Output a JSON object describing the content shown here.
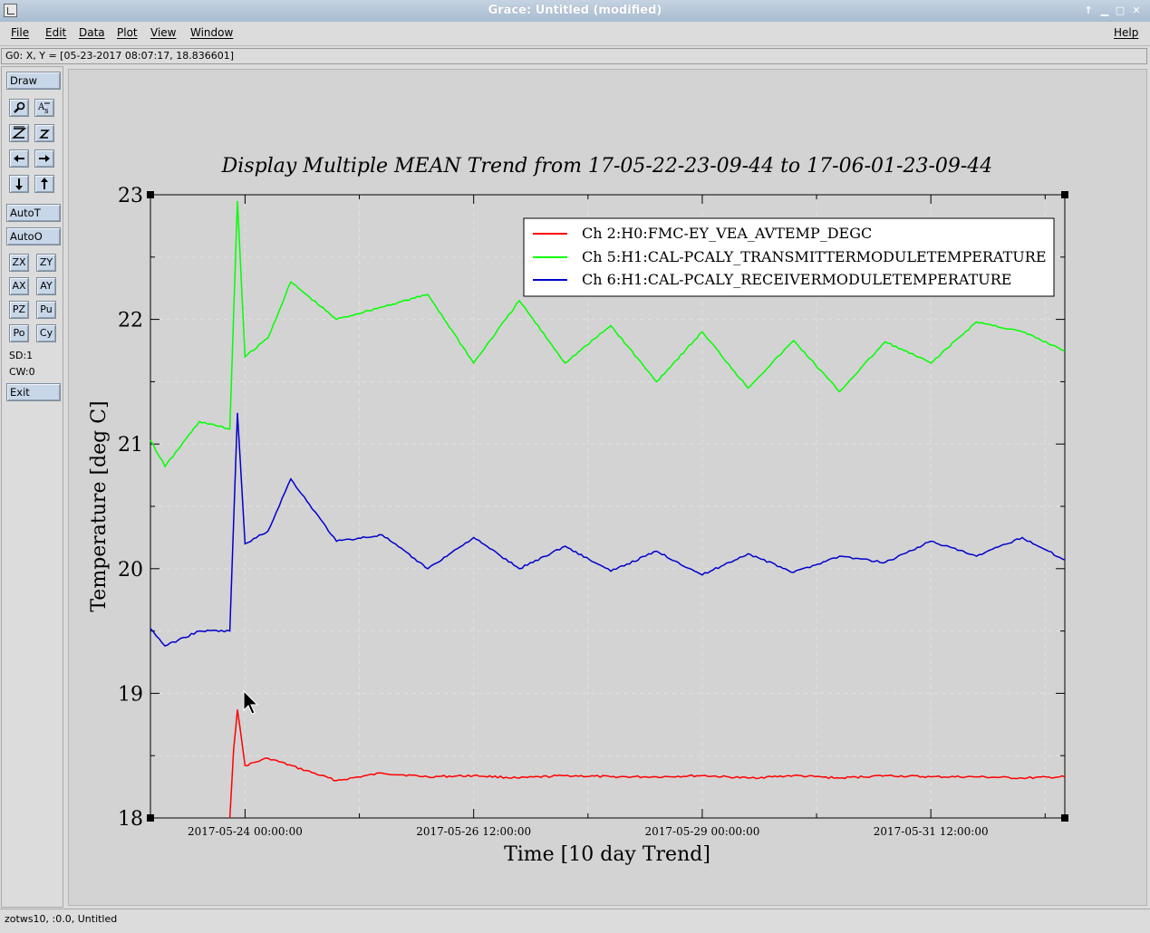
{
  "window": {
    "title": "Grace: Untitled (modified)"
  },
  "menubar": {
    "items": [
      "File",
      "Edit",
      "Data",
      "Plot",
      "View",
      "Window"
    ],
    "help": "Help"
  },
  "locator": {
    "text": "G0: X, Y = [05-23-2017 08:07:17, 18.836601]"
  },
  "toolbar": {
    "draw": "Draw",
    "zoom_icons": [
      "zoom-icon",
      "text-icon",
      "zoom-z-icon",
      "unzoom-z-icon",
      "arrow-left-icon",
      "arrow-right-icon",
      "arrow-down-icon",
      "arrow-up-icon"
    ],
    "autot": "AutoT",
    "autoo": "AutoO",
    "grid_buttons": [
      [
        "ZX",
        "ZY"
      ],
      [
        "AX",
        "AY"
      ],
      [
        "PZ",
        "Pu"
      ],
      [
        "Po",
        "Cy"
      ]
    ],
    "sd": "SD:1",
    "cw": "CW:0",
    "exit": "Exit"
  },
  "status": {
    "text": "zotws10, :0.0, Untitled"
  },
  "chart_data": {
    "type": "line",
    "title": "Display Multiple MEAN Trend from 17-05-22-23-09-44 to 17-06-01-23-09-44",
    "xlabel": "Time [10 day Trend]",
    "ylabel": "Temperature [deg C]",
    "xlim": [
      "2017-05-22 23:09:44",
      "2017-06-01 23:09:44"
    ],
    "ylim": [
      18,
      23
    ],
    "yticks": [
      "18",
      "19",
      "20",
      "21",
      "22",
      "23"
    ],
    "xticks": [
      "2017-05-24 00:00:00",
      "2017-05-26 12:00:00",
      "2017-05-29 00:00:00",
      "2017-05-31 12:00:00"
    ],
    "grid": true,
    "legend_position": "top-right",
    "series": [
      {
        "name": "Ch 2:H0:FMC-EY_VEA_AVTEMP_DEGC",
        "color": "#ff0000",
        "x": [
          "2017-05-23 20:00",
          "2017-05-23 21:00",
          "2017-05-23 22:00",
          "2017-05-24 00:00",
          "2017-05-24 06:00",
          "2017-05-25 00:00",
          "2017-05-25 12:00",
          "2017-05-26 00:00",
          "2017-05-26 12:00",
          "2017-05-27 00:00",
          "2017-05-27 12:00",
          "2017-05-28 00:00",
          "2017-05-28 12:00",
          "2017-05-29 00:00",
          "2017-05-29 12:00",
          "2017-05-30 00:00",
          "2017-05-30 12:00",
          "2017-05-31 00:00",
          "2017-05-31 12:00",
          "2017-06-01 00:00",
          "2017-06-01 12:00",
          "2017-06-01 23:09"
        ],
        "values": [
          18.0,
          18.55,
          18.87,
          18.42,
          18.48,
          18.3,
          18.36,
          18.33,
          18.34,
          18.32,
          18.34,
          18.33,
          18.33,
          18.34,
          18.32,
          18.34,
          18.32,
          18.34,
          18.33,
          18.33,
          18.32,
          18.33
        ]
      },
      {
        "name": "Ch 5:H1:CAL-PCALY_TRANSMITTERMODULETEMPERATURE",
        "color": "#00ff00",
        "x": [
          "2017-05-22 23:09",
          "2017-05-23 03:00",
          "2017-05-23 12:00",
          "2017-05-23 20:00",
          "2017-05-23 22:00",
          "2017-05-24 00:00",
          "2017-05-24 06:00",
          "2017-05-24 12:00",
          "2017-05-25 00:00",
          "2017-05-25 12:00",
          "2017-05-26 00:00",
          "2017-05-26 12:00",
          "2017-05-27 00:00",
          "2017-05-27 12:00",
          "2017-05-28 00:00",
          "2017-05-28 12:00",
          "2017-05-29 00:00",
          "2017-05-29 12:00",
          "2017-05-30 00:00",
          "2017-05-30 12:00",
          "2017-05-31 00:00",
          "2017-05-31 12:00",
          "2017-06-01 00:00",
          "2017-06-01 12:00",
          "2017-06-01 23:09"
        ],
        "values": [
          21.03,
          20.82,
          21.18,
          21.12,
          22.95,
          21.7,
          21.85,
          22.3,
          22.0,
          22.1,
          22.2,
          21.65,
          22.15,
          21.65,
          21.95,
          21.5,
          21.9,
          21.45,
          21.83,
          21.42,
          21.82,
          21.65,
          21.98,
          21.9,
          21.75
        ]
      },
      {
        "name": "Ch 6:H1:CAL-PCALY_RECEIVERMODULETEMPERATURE",
        "color": "#0000cc",
        "x": [
          "2017-05-22 23:09",
          "2017-05-23 03:00",
          "2017-05-23 12:00",
          "2017-05-23 20:00",
          "2017-05-23 22:00",
          "2017-05-24 00:00",
          "2017-05-24 06:00",
          "2017-05-24 12:00",
          "2017-05-25 00:00",
          "2017-05-25 12:00",
          "2017-05-26 00:00",
          "2017-05-26 12:00",
          "2017-05-27 00:00",
          "2017-05-27 12:00",
          "2017-05-28 00:00",
          "2017-05-28 12:00",
          "2017-05-29 00:00",
          "2017-05-29 12:00",
          "2017-05-30 00:00",
          "2017-05-30 12:00",
          "2017-05-31 00:00",
          "2017-05-31 12:00",
          "2017-06-01 00:00",
          "2017-06-01 12:00",
          "2017-06-01 23:09"
        ],
        "values": [
          19.52,
          19.38,
          19.5,
          19.5,
          21.25,
          20.2,
          20.3,
          20.72,
          20.22,
          20.27,
          20.0,
          20.25,
          20.0,
          20.18,
          19.98,
          20.14,
          19.95,
          20.12,
          19.97,
          20.1,
          20.05,
          20.22,
          20.1,
          20.25,
          20.07
        ]
      }
    ]
  }
}
